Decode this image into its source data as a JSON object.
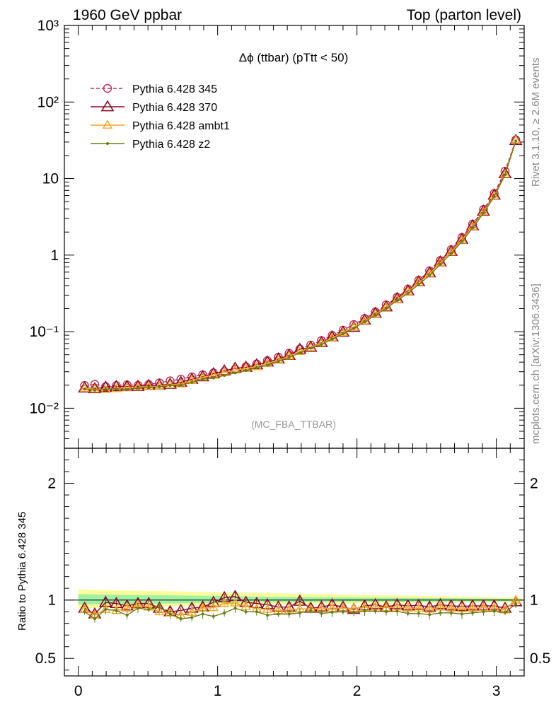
{
  "header": {
    "left": "1960 GeV ppbar",
    "right": "Top (parton level)"
  },
  "side": {
    "rivet": "Rivet 3.1.10, ≥ 2.6M events",
    "mcplots": "mcplots.cern.ch [arXiv:1306.3436]"
  },
  "chart_data": {
    "type": "line",
    "title": "Δϕ (ttbar) (pTtt < 50)",
    "watermark": "(MC_FBA_TTBAR)",
    "ratio_ylabel": "Ratio to Pythia 6.428 345",
    "main": {
      "yscale": "log",
      "ylim": [
        0.003,
        1000
      ],
      "ytick_labels": [
        "10⁻²",
        "10⁻¹",
        "1",
        "10",
        "10²",
        "10³"
      ],
      "legend_position": "top-left"
    },
    "ratio": {
      "ylim": [
        0.35,
        2.3
      ],
      "ytick_labels": [
        "0.5",
        "1",
        "2"
      ]
    },
    "xlim": [
      -0.1,
      3.2
    ],
    "xtick_labels": [
      "0",
      "1",
      "2",
      "3"
    ],
    "x": [
      0.045,
      0.118,
      0.196,
      0.273,
      0.35,
      0.428,
      0.505,
      0.582,
      0.659,
      0.736,
      0.815,
      0.893,
      0.97,
      1.048,
      1.126,
      1.203,
      1.28,
      1.357,
      1.436,
      1.513,
      1.59,
      1.668,
      1.745,
      1.822,
      1.9,
      1.977,
      2.055,
      2.132,
      2.21,
      2.288,
      2.366,
      2.443,
      2.521,
      2.598,
      2.676,
      2.753,
      2.83,
      2.908,
      2.985,
      3.063,
      3.14
    ],
    "series": [
      {
        "name": "Pythia 6.428 345",
        "color": "#c0305a",
        "marker": "circle",
        "dashed": true,
        "values": [
          0.0198,
          0.0205,
          0.0192,
          0.0198,
          0.0202,
          0.0199,
          0.0204,
          0.0215,
          0.0228,
          0.024,
          0.0257,
          0.0274,
          0.0289,
          0.0301,
          0.0323,
          0.0349,
          0.0379,
          0.0418,
          0.0466,
          0.0524,
          0.0594,
          0.067,
          0.0768,
          0.0894,
          0.1047,
          0.124,
          0.1488,
          0.181,
          0.224,
          0.282,
          0.36,
          0.47,
          0.625,
          0.85,
          1.18,
          1.7,
          2.55,
          3.95,
          6.4,
          12.5,
          32.0
        ]
      },
      {
        "name": "Pythia 6.428 370",
        "color": "#8b0a2a",
        "marker": "triangle-open-large",
        "dashed": false,
        "values": [
          0.0184,
          0.018,
          0.0188,
          0.0192,
          0.0192,
          0.0193,
          0.0198,
          0.02,
          0.0206,
          0.0218,
          0.0239,
          0.0258,
          0.0282,
          0.0308,
          0.0333,
          0.0343,
          0.0369,
          0.0402,
          0.044,
          0.0491,
          0.0588,
          0.0624,
          0.072,
          0.0856,
          0.0985,
          0.114,
          0.1415,
          0.174,
          0.211,
          0.271,
          0.342,
          0.449,
          0.587,
          0.816,
          1.12,
          1.61,
          2.42,
          3.75,
          6.08,
          11.6,
          31.5
        ]
      },
      {
        "name": "Pythia 6.428 ambt1",
        "color": "#f5a623",
        "marker": "triangle-open",
        "dashed": false,
        "values": [
          0.0182,
          0.0178,
          0.0176,
          0.018,
          0.0188,
          0.019,
          0.0192,
          0.0193,
          0.0203,
          0.0208,
          0.023,
          0.0255,
          0.027,
          0.0292,
          0.0315,
          0.033,
          0.035,
          0.0385,
          0.0425,
          0.048,
          0.055,
          0.062,
          0.071,
          0.083,
          0.0975,
          0.115,
          0.139,
          0.17,
          0.209,
          0.264,
          0.335,
          0.438,
          0.575,
          0.798,
          1.1,
          1.57,
          2.37,
          3.7,
          5.95,
          11.4,
          31.8
        ]
      },
      {
        "name": "Pythia 6.428 z2",
        "color": "#6b7a12",
        "marker": "dot",
        "dashed": false,
        "values": [
          0.0178,
          0.0172,
          0.0177,
          0.018,
          0.0175,
          0.0185,
          0.0188,
          0.019,
          0.0198,
          0.0202,
          0.0218,
          0.024,
          0.0248,
          0.0268,
          0.029,
          0.0312,
          0.034,
          0.0365,
          0.041,
          0.046,
          0.053,
          0.061,
          0.068,
          0.08,
          0.094,
          0.111,
          0.1345,
          0.164,
          0.202,
          0.255,
          0.318,
          0.415,
          0.545,
          0.755,
          1.05,
          1.5,
          2.27,
          3.55,
          5.8,
          11.2,
          31.0
        ]
      }
    ],
    "ratio_series": [
      {
        "name": "Pythia 6.428 370",
        "values": [
          0.93,
          0.88,
          0.98,
          0.97,
          0.95,
          0.97,
          0.97,
          0.93,
          0.9,
          0.91,
          0.93,
          0.94,
          0.98,
          1.02,
          1.03,
          0.98,
          0.97,
          0.96,
          0.94,
          0.94,
          0.99,
          0.93,
          0.94,
          0.96,
          0.94,
          0.92,
          0.95,
          0.96,
          0.94,
          0.96,
          0.95,
          0.955,
          0.94,
          0.96,
          0.95,
          0.945,
          0.95,
          0.95,
          0.95,
          0.93,
          0.985
        ]
      },
      {
        "name": "Pythia 6.428 ambt1",
        "values": [
          0.92,
          0.87,
          0.92,
          0.91,
          0.93,
          0.955,
          0.94,
          0.9,
          0.89,
          0.87,
          0.895,
          0.93,
          0.935,
          0.97,
          0.975,
          0.945,
          0.925,
          0.92,
          0.91,
          0.915,
          0.925,
          0.925,
          0.925,
          0.93,
          0.93,
          0.93,
          0.935,
          0.94,
          0.935,
          0.94,
          0.93,
          0.93,
          0.92,
          0.94,
          0.93,
          0.925,
          0.93,
          0.935,
          0.93,
          0.915,
          1.0
        ]
      },
      {
        "name": "Pythia 6.428 z2",
        "values": [
          0.9,
          0.84,
          0.92,
          0.91,
          0.87,
          0.93,
          0.92,
          0.94,
          0.88,
          0.84,
          0.85,
          0.88,
          0.86,
          0.89,
          0.93,
          0.9,
          0.9,
          0.87,
          0.88,
          0.88,
          0.89,
          0.91,
          0.885,
          0.895,
          0.9,
          0.895,
          0.905,
          0.905,
          0.9,
          0.905,
          0.885,
          0.885,
          0.875,
          0.89,
          0.89,
          0.88,
          0.89,
          0.9,
          0.905,
          0.895,
          0.965
        ]
      }
    ],
    "ratio_band": {
      "green": [
        0.96,
        1.05
      ],
      "yellow": [
        0.93,
        1.09
      ]
    }
  }
}
